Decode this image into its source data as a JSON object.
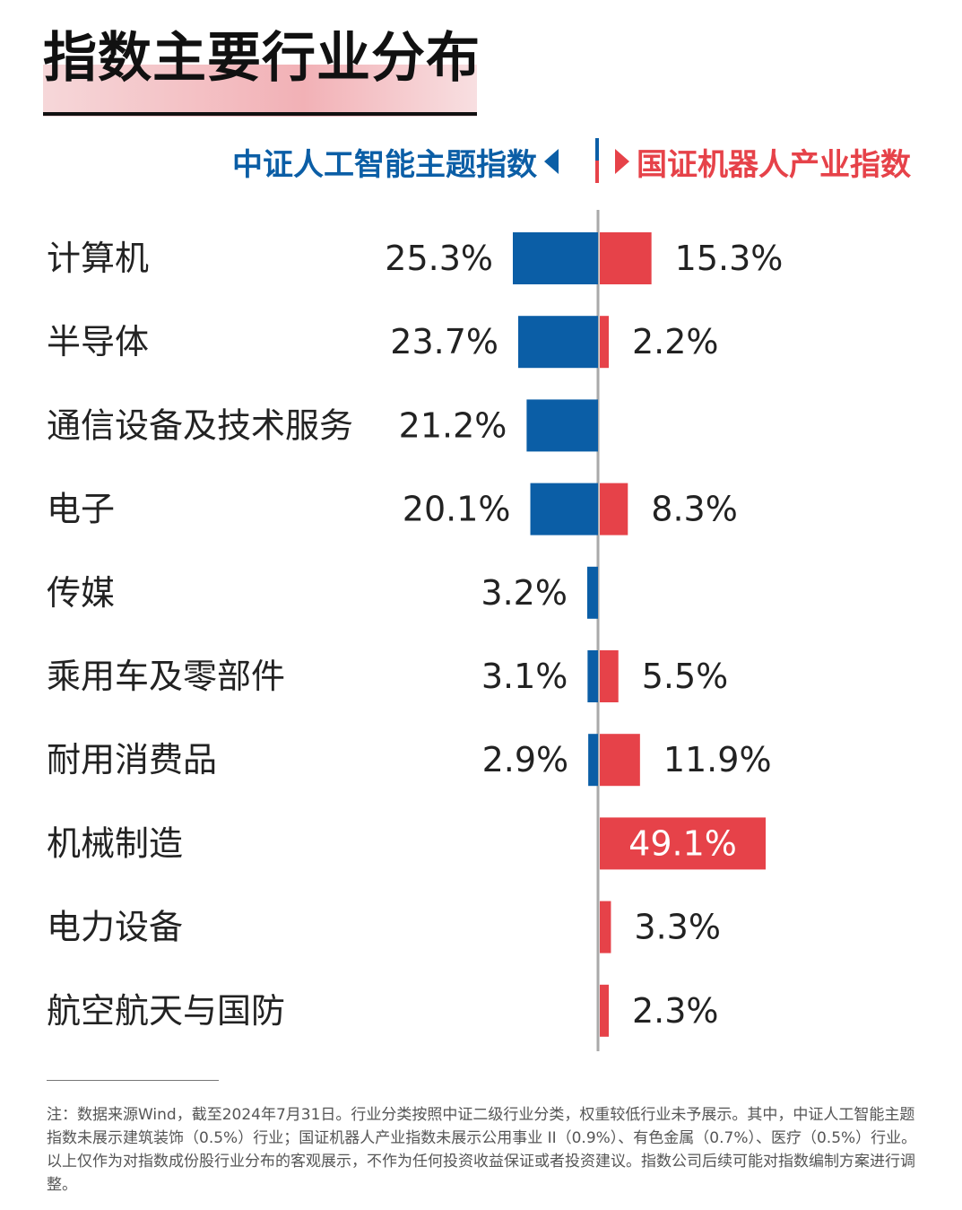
{
  "title": "指数主要行业分布",
  "legend": {
    "left": "中证人工智能主题指数",
    "right": "国证机器人产业指数",
    "left_color": "#0b5ea6",
    "right_color": "#e64249"
  },
  "chart_data": {
    "type": "bar",
    "orientation": "horizontal-diverging",
    "categories": [
      "计算机",
      "半导体",
      "通信设备及技术服务",
      "电子",
      "传媒",
      "乘用车及零部件",
      "耐用消费品",
      "机械制造",
      "电力设备",
      "航空航天与国防"
    ],
    "series": [
      {
        "name": "中证人工智能主题指数",
        "color": "#0b5ea6",
        "values": [
          25.3,
          23.7,
          21.2,
          20.1,
          3.2,
          3.1,
          2.9,
          null,
          null,
          null
        ],
        "labels": [
          "25.3%",
          "23.7%",
          "21.2%",
          "20.1%",
          "3.2%",
          "3.1%",
          "2.9%",
          null,
          null,
          null
        ]
      },
      {
        "name": "国证机器人产业指数",
        "color": "#e64249",
        "values": [
          15.3,
          2.2,
          null,
          8.3,
          null,
          5.5,
          11.9,
          49.1,
          3.3,
          2.3
        ],
        "labels": [
          "15.3%",
          "2.2%",
          null,
          "8.3%",
          null,
          "5.5%",
          "11.9%",
          "49.1%",
          "3.3%",
          "2.3%"
        ]
      }
    ]
  },
  "footer": {
    "note": "注：数据来源Wind，截至2024年7月31日。行业分类按照中证二级行业分类，权重较低行业未予展示。其中，中证人工智能主题指数未展示建筑装饰（0.5%）行业；国证机器人产业指数未展示公用事业 II（0.9%）、有色金属（0.7%）、医疗（0.5%）行业。以上仅作为对指数成份股行业分布的客观展示，不作为任何投资收益保证或者投资建议。指数公司后续可能对指数编制方案进行调整。"
  }
}
